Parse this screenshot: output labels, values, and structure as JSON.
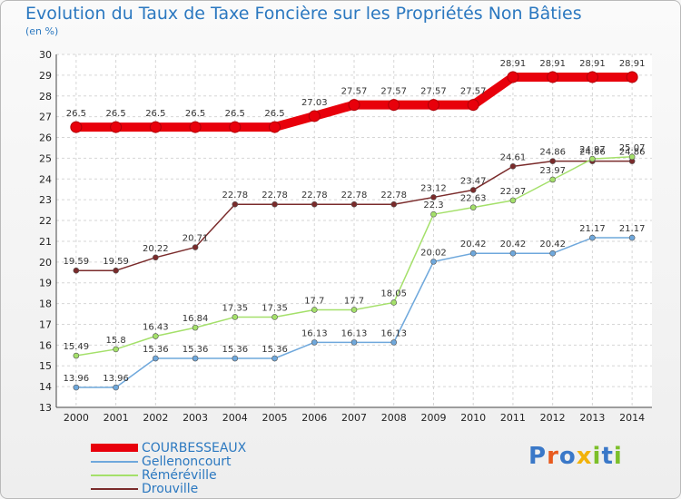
{
  "chart_data": {
    "type": "line",
    "title": "Evolution du Taux de Taxe Foncière sur les Propriétés Non Bâties",
    "subtitle": "(en %)",
    "ylim": [
      13,
      30
    ],
    "yticks": [
      "13",
      "14",
      "15",
      "16",
      "17",
      "18",
      "19",
      "20",
      "21",
      "22",
      "23",
      "24",
      "25",
      "26",
      "27",
      "28",
      "29",
      "30"
    ],
    "categories": [
      "2000",
      "2001",
      "2002",
      "2003",
      "2004",
      "2005",
      "2006",
      "2007",
      "2008",
      "2009",
      "2010",
      "2011",
      "2012",
      "2013",
      "2014"
    ],
    "series": [
      {
        "name": "COURBESSEAUX",
        "color": "#e8000b",
        "values": [
          26.5,
          26.5,
          26.5,
          26.5,
          26.5,
          26.5,
          27.03,
          27.57,
          27.57,
          27.57,
          27.57,
          28.91,
          28.91,
          28.91,
          28.91
        ],
        "labels": [
          "26.5",
          "26.5",
          "26.5",
          "26.5",
          "26.5",
          "26.5",
          "27.03",
          "27.57",
          "27.57",
          "27.57",
          "27.57",
          "28.91",
          "28.91",
          "28.91",
          "28.91"
        ]
      },
      {
        "name": "Gellenoncourt",
        "color": "#6fa8dc",
        "values": [
          13.96,
          13.96,
          15.36,
          15.36,
          15.36,
          15.36,
          16.13,
          16.13,
          16.13,
          20.02,
          20.42,
          20.42,
          20.42,
          21.17,
          21.17
        ],
        "labels": [
          "13.96",
          "13.96",
          "15.36",
          "15.36",
          "15.36",
          "15.36",
          "16.13",
          "16.13",
          "16.13",
          "20.02",
          "20.42",
          "20.42",
          "20.42",
          "21.17",
          "21.17"
        ]
      },
      {
        "name": "Réméréville",
        "color": "#a4e06a",
        "values": [
          15.49,
          15.8,
          16.43,
          16.84,
          17.35,
          17.35,
          17.7,
          17.7,
          18.05,
          22.3,
          22.63,
          22.97,
          23.97,
          24.97,
          25.07
        ],
        "labels": [
          "15.49",
          "15.8",
          "16.43",
          "16.84",
          "17.35",
          "17.35",
          "17.7",
          "17.7",
          "18.05",
          "22.3",
          "22.63",
          "22.97",
          "23.97",
          "24.97",
          "25.07"
        ]
      },
      {
        "name": "Drouville",
        "color": "#7a2b2b",
        "values": [
          19.59,
          19.59,
          20.22,
          20.71,
          22.78,
          22.78,
          22.78,
          22.78,
          22.78,
          23.12,
          23.47,
          24.61,
          24.86,
          24.86,
          24.86
        ],
        "labels": [
          "19.59",
          "19.59",
          "20.22",
          "20.71",
          "22.78",
          "22.78",
          "22.78",
          "22.78",
          "22.78",
          "23.12",
          "23.47",
          "24.61",
          "24.86",
          "24.86",
          "24.86"
        ]
      }
    ]
  },
  "legend": {
    "items": [
      "COURBESSEAUX",
      "Gellenoncourt",
      "Réméréville",
      "Drouville"
    ]
  },
  "logo": {
    "letters": [
      "P",
      "r",
      "o",
      "x",
      "i",
      "t",
      "i"
    ],
    "colors": [
      "#3a78c8",
      "#e85a1e",
      "#3a78c8",
      "#f2b20a",
      "#7cbf2a",
      "#3a78c8",
      "#7cbf2a"
    ]
  }
}
